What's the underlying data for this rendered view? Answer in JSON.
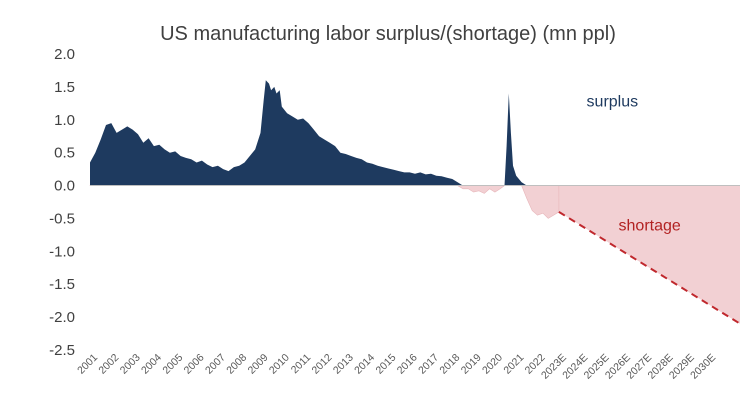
{
  "chart_data": {
    "type": "area",
    "title": "US manufacturing labor surplus/(shortage) (mn ppl)",
    "xlabel": "",
    "ylabel": "",
    "ylim": [
      -2.5,
      2.0
    ],
    "yticks": [
      "2.0",
      "1.5",
      "1.0",
      "0.5",
      "0.0",
      "-0.5",
      "-1.0",
      "-1.5",
      "-2.0",
      "-2.5"
    ],
    "categories": [
      "2001",
      "2002",
      "2003",
      "2004",
      "2005",
      "2006",
      "2007",
      "2008",
      "2009",
      "2010",
      "2011",
      "2012",
      "2013",
      "2014",
      "2015",
      "2016",
      "2017",
      "2018",
      "2019",
      "2020",
      "2021",
      "2022",
      "2023E",
      "2024E",
      "2025E",
      "2026E",
      "2027E",
      "2028E",
      "2029E",
      "2030E"
    ],
    "grid": false,
    "legend": "none",
    "colors": {
      "surplus": "#1e3a5f",
      "shortage_fill": "#f2d0d3",
      "shortage_line": "#c0282d",
      "axis": "#bfbfbf"
    },
    "annotations": [
      {
        "text": "surplus",
        "x": 2024.3,
        "y": 1.2
      },
      {
        "text": "shortage",
        "x": 2025.8,
        "y": -0.68
      }
    ],
    "series": [
      {
        "role": "historical",
        "x": [
          2001.0,
          2001.25,
          2001.5,
          2001.75,
          2002.0,
          2002.25,
          2002.5,
          2002.75,
          2003.0,
          2003.25,
          2003.5,
          2003.75,
          2004.0,
          2004.25,
          2004.5,
          2004.75,
          2005.0,
          2005.25,
          2005.5,
          2005.75,
          2006.0,
          2006.25,
          2006.5,
          2006.75,
          2007.0,
          2007.25,
          2007.5,
          2007.75,
          2008.0,
          2008.25,
          2008.5,
          2008.75,
          2009.0,
          2009.15,
          2009.25,
          2009.4,
          2009.5,
          2009.65,
          2009.75,
          2009.9,
          2010.0,
          2010.25,
          2010.5,
          2010.75,
          2011.0,
          2011.25,
          2011.5,
          2011.75,
          2012.0,
          2012.25,
          2012.5,
          2012.75,
          2013.0,
          2013.25,
          2013.5,
          2013.75,
          2014.0,
          2014.25,
          2014.5,
          2014.75,
          2015.0,
          2015.25,
          2015.5,
          2015.75,
          2016.0,
          2016.25,
          2016.5,
          2016.75,
          2017.0,
          2017.25,
          2017.5,
          2017.75,
          2018.0,
          2018.25,
          2018.5,
          2018.75,
          2019.0,
          2019.25,
          2019.5,
          2019.75,
          2020.0,
          2020.25,
          2020.45,
          2020.55,
          2020.65,
          2020.75,
          2020.85,
          2021.0,
          2021.25,
          2021.5,
          2021.75,
          2022.0,
          2022.25,
          2022.5,
          2022.75,
          2023.0
        ],
        "values": [
          0.35,
          0.5,
          0.7,
          0.92,
          0.95,
          0.8,
          0.85,
          0.9,
          0.85,
          0.78,
          0.65,
          0.72,
          0.6,
          0.62,
          0.55,
          0.5,
          0.52,
          0.45,
          0.42,
          0.4,
          0.35,
          0.38,
          0.32,
          0.28,
          0.3,
          0.25,
          0.22,
          0.28,
          0.3,
          0.35,
          0.45,
          0.55,
          0.8,
          1.3,
          1.6,
          1.55,
          1.45,
          1.5,
          1.4,
          1.45,
          1.2,
          1.1,
          1.05,
          1.0,
          1.02,
          0.95,
          0.85,
          0.75,
          0.7,
          0.65,
          0.6,
          0.5,
          0.48,
          0.45,
          0.42,
          0.4,
          0.35,
          0.33,
          0.3,
          0.28,
          0.26,
          0.24,
          0.22,
          0.2,
          0.2,
          0.18,
          0.2,
          0.17,
          0.18,
          0.15,
          0.14,
          0.12,
          0.1,
          0.05,
          -0.05,
          -0.05,
          -0.1,
          -0.08,
          -0.12,
          -0.05,
          -0.1,
          -0.05,
          0.0,
          0.6,
          1.4,
          0.8,
          0.3,
          0.15,
          0.05,
          -0.2,
          -0.38,
          -0.45,
          -0.42,
          -0.5,
          -0.45,
          -0.4
        ]
      },
      {
        "role": "projection",
        "x": [
          2023.0,
          2031.5
        ],
        "values": [
          -0.4,
          -2.1
        ]
      }
    ]
  }
}
